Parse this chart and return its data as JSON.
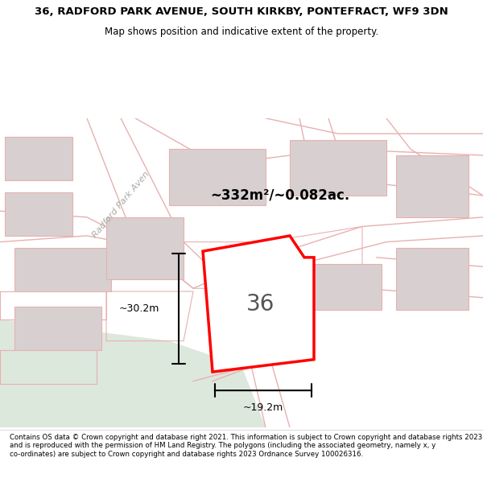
{
  "title_line1": "36, RADFORD PARK AVENUE, SOUTH KIRKBY, PONTEFRACT, WF9 3DN",
  "title_line2": "Map shows position and indicative extent of the property.",
  "area_text": "~332m²/~0.082ac.",
  "dim_vertical": "~30.2m",
  "dim_horizontal": "~19.2m",
  "number_label": "36",
  "footer_text": "Contains OS data © Crown copyright and database right 2021. This information is subject to Crown copyright and database rights 2023 and is reproduced with the permission of HM Land Registry. The polygons (including the associated geometry, namely x, y co-ordinates) are subject to Crown copyright and database rights 2023 Ordnance Survey 100026316.",
  "bg_color": "#f5f0f0",
  "map_bg": "#f7f2f2",
  "plot_fill": "#ffffff",
  "road_color": "#e8b0b0",
  "building_color": "#d8d0d0",
  "highlight_color": "#ff0000",
  "text_color": "#333333",
  "street_label": "Radford Park Aven",
  "green_area_color": "#dce8dc"
}
